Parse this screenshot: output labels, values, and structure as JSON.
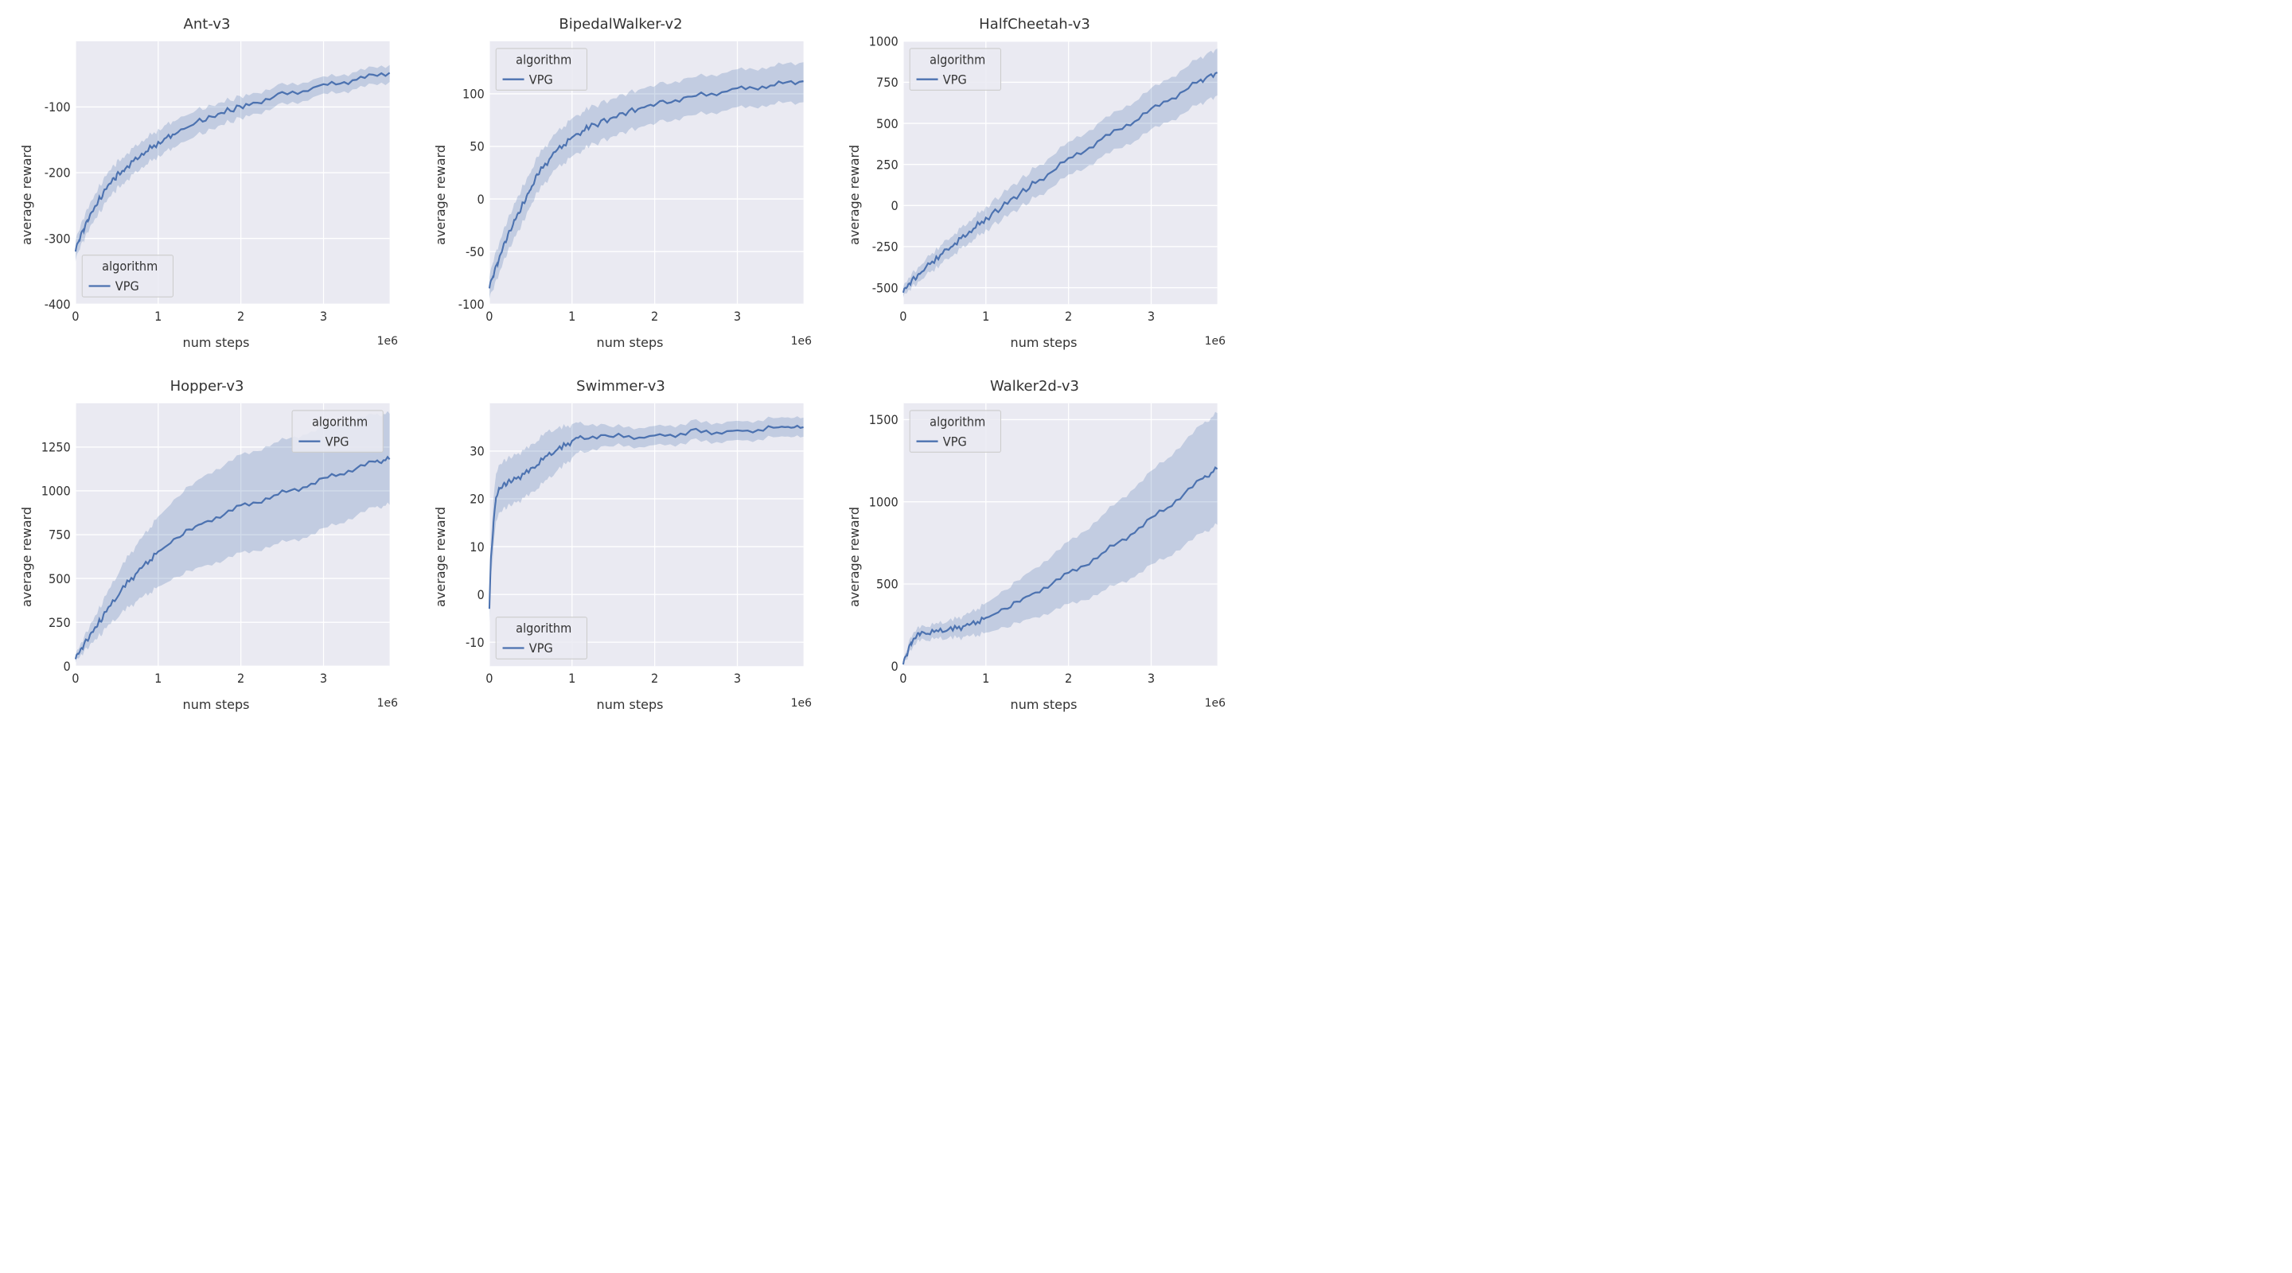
{
  "layout": {
    "rows": 2,
    "cols": 3,
    "panel_bg": "#eaeaf2",
    "grid_color": "#ffffff",
    "font_color": "#333333"
  },
  "common": {
    "xlabel": "num steps",
    "ylabel": "average reward",
    "x_offset_text": "1e6",
    "legend_title": "algorithm",
    "legend_item": "VPG",
    "line_color": "#4c72b0",
    "band_color": "#4c72b0",
    "band_opacity": 0.25,
    "line_width": 2,
    "xlim": [
      0,
      3.8
    ],
    "xticks": [
      0,
      1,
      2,
      3
    ]
  },
  "panels": [
    {
      "title": "Ant-v3",
      "ylim": [
        -400,
        0
      ],
      "yticks": [
        -400,
        -300,
        -200,
        -100
      ],
      "legend_pos": "lower-left",
      "x": [
        0,
        0.05,
        0.1,
        0.15,
        0.2,
        0.3,
        0.4,
        0.5,
        0.6,
        0.8,
        1.0,
        1.2,
        1.5,
        1.8,
        2.1,
        2.5,
        3.0,
        3.4,
        3.8
      ],
      "y": [
        -320,
        -300,
        -285,
        -270,
        -258,
        -238,
        -220,
        -205,
        -193,
        -172,
        -155,
        -140,
        -122,
        -108,
        -95,
        -82,
        -68,
        -58,
        -48
      ],
      "lo": [
        -335,
        -315,
        -302,
        -288,
        -276,
        -258,
        -240,
        -225,
        -213,
        -192,
        -175,
        -160,
        -142,
        -126,
        -112,
        -98,
        -82,
        -72,
        -62
      ],
      "hi": [
        -305,
        -285,
        -268,
        -252,
        -240,
        -218,
        -200,
        -185,
        -173,
        -152,
        -135,
        -120,
        -104,
        -92,
        -80,
        -68,
        -56,
        -46,
        -36
      ]
    },
    {
      "title": "BipedalWalker-v2",
      "ylim": [
        -100,
        150
      ],
      "yticks": [
        -100,
        -50,
        0,
        50,
        100
      ],
      "legend_pos": "upper-left",
      "x": [
        0,
        0.05,
        0.1,
        0.2,
        0.3,
        0.4,
        0.5,
        0.6,
        0.8,
        1.0,
        1.2,
        1.5,
        1.8,
        2.1,
        2.5,
        3.0,
        3.4,
        3.8
      ],
      "y": [
        -85,
        -72,
        -60,
        -40,
        -22,
        -5,
        10,
        25,
        45,
        58,
        68,
        78,
        86,
        92,
        98,
        104,
        108,
        112
      ],
      "lo": [
        -95,
        -85,
        -74,
        -55,
        -38,
        -22,
        -6,
        8,
        28,
        40,
        50,
        60,
        68,
        74,
        80,
        86,
        90,
        92
      ],
      "hi": [
        -75,
        -58,
        -46,
        -25,
        -6,
        12,
        26,
        42,
        62,
        76,
        86,
        96,
        104,
        110,
        116,
        122,
        126,
        130
      ]
    },
    {
      "title": "HalfCheetah-v3",
      "ylim": [
        -600,
        1000
      ],
      "yticks": [
        -500,
        -250,
        0,
        250,
        500,
        750,
        1000
      ],
      "legend_pos": "upper-left",
      "x": [
        0,
        0.1,
        0.2,
        0.4,
        0.6,
        0.8,
        1.0,
        1.3,
        1.6,
        2.0,
        2.4,
        2.8,
        3.2,
        3.6,
        3.8
      ],
      "y": [
        -530,
        -460,
        -410,
        -320,
        -240,
        -160,
        -80,
        30,
        140,
        280,
        400,
        520,
        640,
        760,
        810
      ],
      "lo": [
        -560,
        -500,
        -455,
        -375,
        -300,
        -225,
        -150,
        -50,
        50,
        180,
        290,
        400,
        510,
        620,
        670
      ],
      "hi": [
        -500,
        -420,
        -365,
        -265,
        -180,
        -95,
        -10,
        110,
        230,
        380,
        510,
        640,
        770,
        900,
        955
      ]
    },
    {
      "title": "Hopper-v3",
      "ylim": [
        0,
        1500
      ],
      "yticks": [
        0,
        250,
        500,
        750,
        1000,
        1250
      ],
      "legend_pos": "upper-right",
      "x": [
        0,
        0.1,
        0.2,
        0.3,
        0.4,
        0.6,
        0.8,
        1.0,
        1.3,
        1.6,
        2.0,
        2.4,
        2.8,
        3.2,
        3.6,
        3.8
      ],
      "y": [
        40,
        120,
        200,
        260,
        330,
        460,
        560,
        650,
        760,
        830,
        910,
        970,
        1030,
        1100,
        1160,
        1180
      ],
      "lo": [
        20,
        80,
        140,
        180,
        230,
        320,
        390,
        450,
        530,
        580,
        640,
        690,
        740,
        820,
        900,
        920
      ],
      "hi": [
        60,
        160,
        260,
        340,
        430,
        600,
        730,
        850,
        1000,
        1100,
        1200,
        1270,
        1330,
        1390,
        1430,
        1440
      ]
    },
    {
      "title": "Swimmer-v3",
      "ylim": [
        -15,
        40
      ],
      "yticks": [
        -10,
        0,
        10,
        20,
        30
      ],
      "legend_pos": "lower-left",
      "x": [
        0,
        0.02,
        0.05,
        0.08,
        0.12,
        0.2,
        0.3,
        0.5,
        0.7,
        0.9,
        1.1,
        1.5,
        2.0,
        2.5,
        3.0,
        3.5,
        3.8
      ],
      "y": [
        -3,
        8,
        15,
        20,
        22,
        23,
        24,
        26,
        29,
        31,
        33,
        33,
        33,
        34,
        34,
        35,
        35
      ],
      "lo": [
        -6,
        4,
        10,
        15,
        17,
        18,
        19,
        21,
        24,
        27,
        30,
        31,
        31,
        32,
        32,
        33,
        33
      ],
      "hi": [
        0,
        12,
        20,
        25,
        27,
        28,
        29,
        31,
        34,
        35,
        36,
        35,
        35,
        36,
        36,
        37,
        37
      ]
    },
    {
      "title": "Walker2d-v3",
      "ylim": [
        0,
        1600
      ],
      "yticks": [
        0,
        500,
        1000,
        1500
      ],
      "legend_pos": "upper-left",
      "x": [
        0,
        0.05,
        0.1,
        0.2,
        0.4,
        0.6,
        0.8,
        1.0,
        1.3,
        1.6,
        2.0,
        2.4,
        2.8,
        3.2,
        3.6,
        3.8
      ],
      "y": [
        10,
        80,
        150,
        195,
        210,
        225,
        250,
        290,
        370,
        450,
        560,
        680,
        820,
        970,
        1130,
        1200
      ],
      "lo": [
        0,
        50,
        110,
        155,
        165,
        170,
        180,
        200,
        250,
        300,
        370,
        450,
        550,
        670,
        800,
        860
      ],
      "hi": [
        20,
        110,
        190,
        235,
        255,
        280,
        320,
        380,
        490,
        600,
        750,
        910,
        1090,
        1270,
        1460,
        1540
      ]
    }
  ]
}
